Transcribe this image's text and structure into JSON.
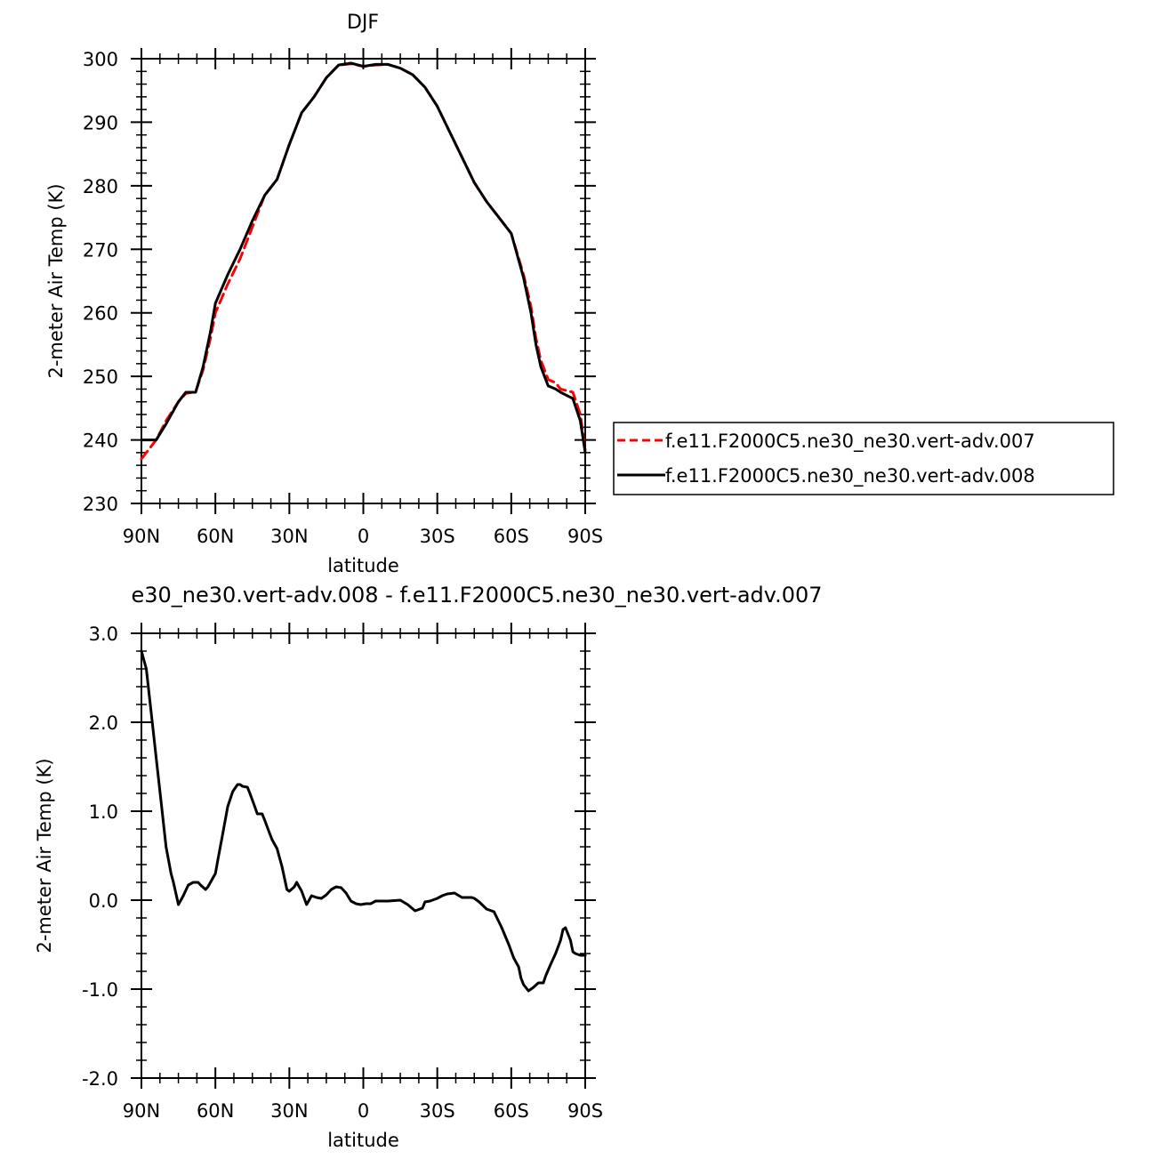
{
  "chart_data": [
    {
      "type": "line",
      "title": "DJF",
      "xlabel": "latitude",
      "ylabel": "2-meter Air Temp (K)",
      "xlim": [
        90,
        -90
      ],
      "ylim": [
        230,
        300
      ],
      "x_tick_values": [
        90,
        60,
        30,
        0,
        -30,
        -60,
        -90
      ],
      "x_tick_labels": [
        "90N",
        "60N",
        "30N",
        "0",
        "30S",
        "60S",
        "90S"
      ],
      "y_ticks": [
        230,
        240,
        250,
        260,
        270,
        280,
        290,
        300
      ],
      "y_tick_labels": [
        "230",
        "240",
        "250",
        "260",
        "270",
        "280",
        "290",
        "300"
      ],
      "legend": "right",
      "series": [
        {
          "name": "f.e11.F2000C5.ne30_ne30.vert-adv.007",
          "color": "#ff0000",
          "dash": "dashed",
          "x": [
            90,
            84,
            80,
            75,
            72,
            68,
            65,
            62,
            60,
            55,
            50,
            45,
            40,
            35,
            30,
            25,
            20,
            15,
            10,
            5,
            0,
            -5,
            -10,
            -15,
            -20,
            -25,
            -30,
            -35,
            -40,
            -45,
            -50,
            -55,
            -60,
            -65,
            -68,
            -70,
            -72,
            -75,
            -78,
            -80,
            -85,
            -88,
            -90
          ],
          "y": [
            237.0,
            240.0,
            243.0,
            246.0,
            247.3,
            247.6,
            251.0,
            256.0,
            260.0,
            264.5,
            268.5,
            273.5,
            278.5,
            281.0,
            286.5,
            291.5,
            294.0,
            297.0,
            299.0,
            299.2,
            298.8,
            299.0,
            299.1,
            298.5,
            297.5,
            295.5,
            292.5,
            288.5,
            284.5,
            280.5,
            277.5,
            275.0,
            272.5,
            266.0,
            261.0,
            256.0,
            252.5,
            249.5,
            249.0,
            248.0,
            247.5,
            244.0,
            238.5
          ]
        },
        {
          "name": "f.e11.F2000C5.ne30_ne30.vert-adv.008",
          "color": "#000000",
          "dash": "solid",
          "x": [
            90,
            84,
            80,
            75,
            72,
            68,
            65,
            62,
            60,
            55,
            50,
            45,
            40,
            35,
            30,
            25,
            20,
            15,
            10,
            5,
            0,
            -5,
            -10,
            -15,
            -20,
            -25,
            -30,
            -35,
            -40,
            -45,
            -50,
            -55,
            -60,
            -65,
            -68,
            -70,
            -72,
            -75,
            -78,
            -80,
            -85,
            -88,
            -90
          ],
          "y": [
            240.0,
            240.0,
            242.5,
            246.0,
            247.5,
            247.5,
            251.5,
            257.0,
            261.5,
            266.0,
            270.0,
            274.5,
            278.5,
            281.0,
            286.5,
            291.5,
            294.0,
            297.0,
            299.0,
            299.3,
            298.8,
            299.1,
            299.1,
            298.5,
            297.5,
            295.5,
            292.5,
            288.5,
            284.5,
            280.5,
            277.5,
            275.0,
            272.5,
            265.5,
            260.0,
            255.0,
            251.5,
            248.5,
            248.0,
            247.5,
            246.5,
            243.0,
            238.0
          ]
        }
      ]
    },
    {
      "type": "line",
      "title": "e30_ne30.vert-adv.008 - f.e11.F2000C5.ne30_ne30.vert-adv.007",
      "xlabel": "latitude",
      "ylabel": "2-meter Air Temp (K)",
      "xlim": [
        90,
        -90
      ],
      "ylim": [
        -2.0,
        3.0
      ],
      "x_tick_values": [
        90,
        60,
        30,
        0,
        -30,
        -60,
        -90
      ],
      "x_tick_labels": [
        "90N",
        "60N",
        "30N",
        "0",
        "30S",
        "60S",
        "90S"
      ],
      "y_ticks": [
        -2.0,
        -1.0,
        0.0,
        1.0,
        2.0,
        3.0
      ],
      "y_tick_labels": [
        "-2.0",
        "-1.0",
        "0.0",
        "1.0",
        "2.0",
        "3.0"
      ],
      "series": [
        {
          "color": "#000000",
          "dash": "solid",
          "x": [
            90,
            88,
            86,
            84,
            82,
            80,
            78,
            77,
            75,
            73,
            71,
            69,
            67,
            66,
            64,
            63,
            62,
            60,
            59,
            57,
            55,
            53,
            51,
            50,
            49,
            47,
            46,
            44,
            43,
            41,
            40,
            38,
            37,
            35,
            34,
            33,
            31,
            30,
            28,
            27,
            25,
            23,
            21,
            19,
            17,
            15,
            13,
            11,
            9,
            7,
            5,
            3,
            1,
            -1,
            -3,
            -5,
            -10,
            -15,
            -18,
            -21,
            -24,
            -25,
            -27,
            -29,
            -30,
            -32,
            -34,
            -37,
            -40,
            -42,
            -44,
            -45,
            -47,
            -50,
            -53,
            -56,
            -59,
            -61,
            -63,
            -64,
            -65,
            -67,
            -69,
            -71,
            -73,
            -74,
            -76,
            -78,
            -80,
            -81,
            -82,
            -84,
            -85,
            -86,
            -88,
            -90
          ],
          "y": [
            2.8,
            2.6,
            2.1,
            1.6,
            1.1,
            0.6,
            0.3,
            0.2,
            -0.05,
            0.05,
            0.17,
            0.2,
            0.2,
            0.17,
            0.12,
            0.15,
            0.2,
            0.3,
            0.45,
            0.75,
            1.05,
            1.22,
            1.3,
            1.3,
            1.28,
            1.27,
            1.2,
            1.05,
            0.97,
            0.97,
            0.9,
            0.75,
            0.68,
            0.58,
            0.48,
            0.38,
            0.12,
            0.1,
            0.15,
            0.2,
            0.1,
            -0.05,
            0.05,
            0.03,
            0.02,
            0.06,
            0.12,
            0.15,
            0.14,
            0.08,
            -0.01,
            -0.04,
            -0.05,
            -0.04,
            -0.04,
            -0.01,
            -0.01,
            -0.0,
            -0.05,
            -0.12,
            -0.09,
            -0.02,
            -0.01,
            0.01,
            0.02,
            0.05,
            0.07,
            0.08,
            0.03,
            0.03,
            0.03,
            0.02,
            -0.02,
            -0.1,
            -0.13,
            -0.3,
            -0.5,
            -0.65,
            -0.75,
            -0.88,
            -0.95,
            -1.02,
            -0.98,
            -0.93,
            -0.93,
            -0.85,
            -0.72,
            -0.6,
            -0.45,
            -0.33,
            -0.31,
            -0.45,
            -0.58,
            -0.6,
            -0.62,
            -0.62
          ]
        }
      ]
    }
  ]
}
